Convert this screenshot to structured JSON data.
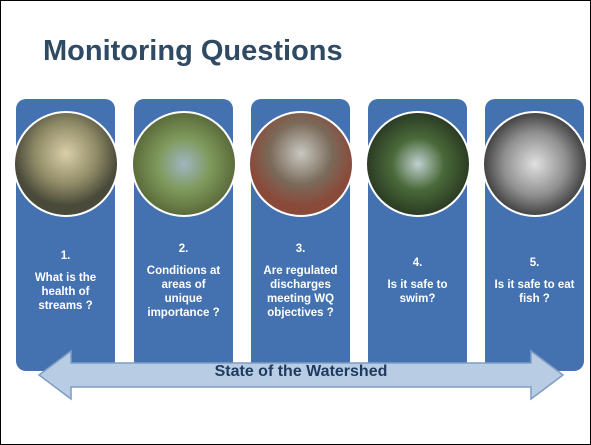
{
  "header": {
    "title": "Monitoring Questions"
  },
  "cards": [
    {
      "number": "1.",
      "question": "What is the health of streams ?"
    },
    {
      "number": "2.",
      "question": "Conditions at areas of unique importance ?"
    },
    {
      "number": "3.",
      "question": "Are regulated discharges meeting WQ objectives ?"
    },
    {
      "number": "4.",
      "question": "Is it safe to swim?"
    },
    {
      "number": "5.",
      "question": "Is it safe to eat fish ?"
    }
  ],
  "arrow": {
    "label": "State of the Watershed"
  }
}
